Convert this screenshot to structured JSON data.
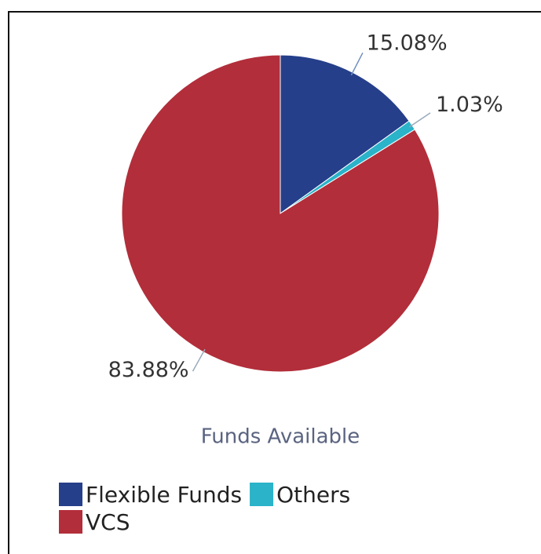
{
  "chart_data": {
    "type": "pie",
    "title": "Funds Available",
    "categories": [
      "Flexible Funds",
      "Others",
      "VCS"
    ],
    "values": [
      15.08,
      1.03,
      83.88
    ],
    "value_labels": [
      "15.08%",
      "1.03%",
      "83.88%"
    ],
    "colors": [
      "#253f8a",
      "#2ab3c9",
      "#b22e3a"
    ]
  }
}
